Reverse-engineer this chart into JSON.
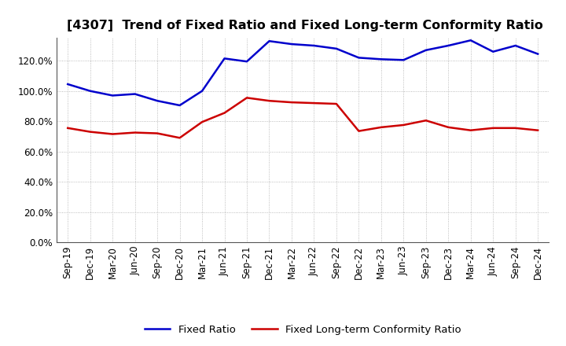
{
  "title": "[4307]  Trend of Fixed Ratio and Fixed Long-term Conformity Ratio",
  "x_labels": [
    "Sep-19",
    "Dec-19",
    "Mar-20",
    "Jun-20",
    "Sep-20",
    "Dec-20",
    "Mar-21",
    "Jun-21",
    "Sep-21",
    "Dec-21",
    "Mar-22",
    "Jun-22",
    "Sep-22",
    "Dec-22",
    "Mar-23",
    "Jun-23",
    "Sep-23",
    "Dec-23",
    "Mar-24",
    "Jun-24",
    "Sep-24",
    "Dec-24"
  ],
  "fixed_ratio": [
    104.5,
    100.0,
    97.0,
    98.0,
    93.5,
    90.5,
    100.0,
    121.5,
    119.5,
    133.0,
    131.0,
    130.0,
    128.0,
    122.0,
    121.0,
    120.5,
    127.0,
    130.0,
    133.5,
    126.0,
    130.0,
    124.5
  ],
  "fixed_lt_ratio": [
    75.5,
    73.0,
    71.5,
    72.5,
    72.0,
    69.0,
    79.5,
    85.5,
    95.5,
    93.5,
    92.5,
    92.0,
    91.5,
    73.5,
    76.0,
    77.5,
    80.5,
    76.0,
    74.0,
    75.5,
    75.5,
    74.0
  ],
  "fixed_ratio_color": "#0000CC",
  "fixed_lt_ratio_color": "#CC0000",
  "background_color": "#ffffff",
  "plot_bg_color": "#ffffff",
  "grid_color": "#aaaaaa",
  "ylim": [
    0,
    135
  ],
  "yticks": [
    0,
    20,
    40,
    60,
    80,
    100,
    120
  ],
  "legend_fixed": "Fixed Ratio",
  "legend_lt": "Fixed Long-term Conformity Ratio",
  "title_fontsize": 11.5,
  "tick_fontsize": 8.5,
  "legend_fontsize": 9.5
}
